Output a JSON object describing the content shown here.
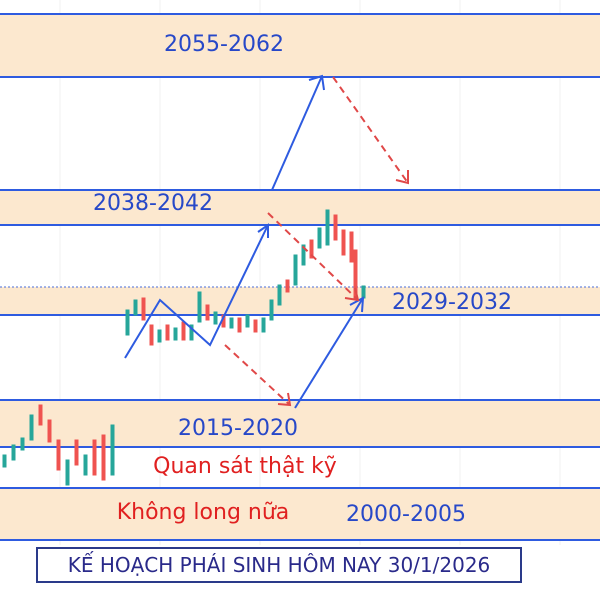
{
  "zones": [
    "2055-2062",
    "2038-2042",
    "2029-2032",
    "2015-2020",
    "2000-2005"
  ],
  "notes": [
    "Quan sát thật kỹ",
    "Không long nữa"
  ],
  "title": "KẾ HOẠCH PHÁI SINH HÔM NAY 30/1/2026"
}
